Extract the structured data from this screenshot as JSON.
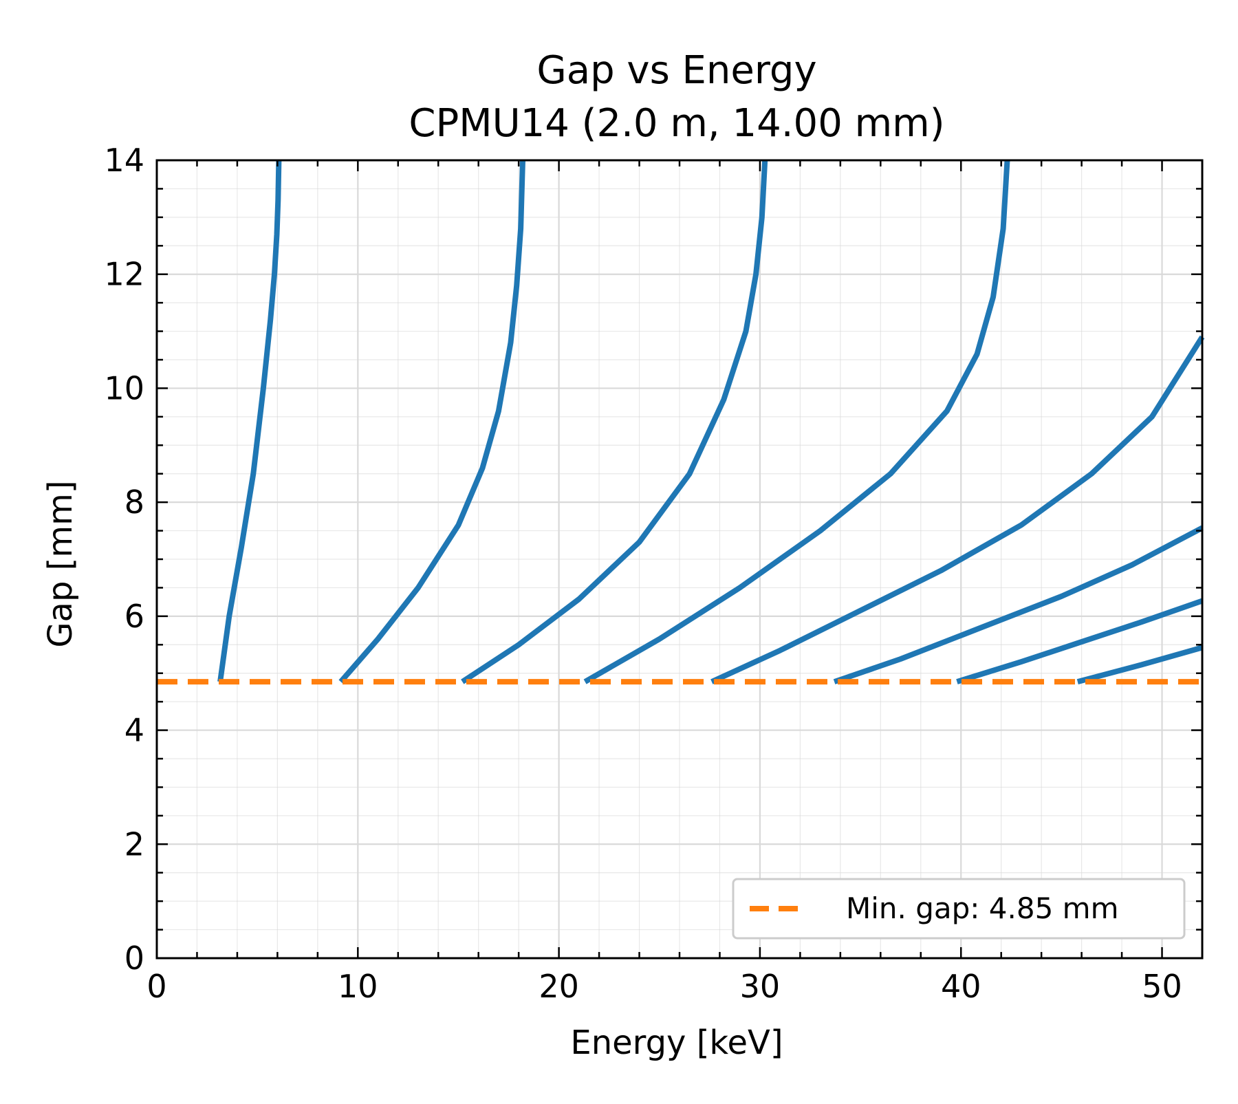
{
  "chart_data": {
    "type": "line",
    "title": [
      "Gap vs Energy",
      "CPMU14 (2.0 m, 14.00 mm)"
    ],
    "xlabel": "Energy [keV]",
    "ylabel": "Gap [mm]",
    "xlim": [
      0,
      52
    ],
    "ylim": [
      0,
      14
    ],
    "xticks": [
      0,
      10,
      20,
      30,
      40,
      50
    ],
    "yticks": [
      0,
      2,
      4,
      6,
      8,
      10,
      12,
      14
    ],
    "grid": true,
    "legend_position": "bottom-right",
    "colors": {
      "harmonic": "#1f77b4",
      "min_gap": "#ff7f0e",
      "grid": "#d9d9d9"
    },
    "series": [
      {
        "x": [
          3.15,
          3.6,
          4.2,
          4.8,
          5.3,
          5.65,
          5.85,
          5.97,
          6.03,
          6.07
        ],
        "y": [
          4.85,
          6.0,
          7.2,
          8.5,
          10.0,
          11.2,
          12.0,
          12.7,
          13.3,
          14.0
        ]
      },
      {
        "x": [
          9.15,
          11.0,
          13.0,
          15.0,
          16.2,
          17.0,
          17.6,
          17.9,
          18.1,
          18.2
        ],
        "y": [
          4.85,
          5.6,
          6.5,
          7.6,
          8.6,
          9.6,
          10.8,
          11.8,
          12.8,
          14.0
        ]
      },
      {
        "x": [
          15.2,
          18.0,
          21.0,
          24.0,
          26.5,
          28.2,
          29.3,
          29.8,
          30.1,
          30.25
        ],
        "y": [
          4.85,
          5.5,
          6.3,
          7.3,
          8.5,
          9.8,
          11.0,
          12.0,
          13.0,
          14.0
        ]
      },
      {
        "x": [
          21.3,
          25.0,
          29.0,
          33.0,
          36.5,
          39.3,
          40.8,
          41.6,
          42.1,
          42.3
        ],
        "y": [
          4.85,
          5.6,
          6.5,
          7.5,
          8.5,
          9.6,
          10.6,
          11.6,
          12.8,
          14.0
        ]
      },
      {
        "x": [
          27.6,
          31.0,
          35.0,
          39.0,
          43.0,
          46.5,
          49.5,
          52.0
        ],
        "y": [
          4.85,
          5.4,
          6.1,
          6.8,
          7.6,
          8.5,
          9.5,
          10.9
        ]
      },
      {
        "x": [
          33.7,
          37.0,
          41.0,
          45.0,
          48.5,
          52.0
        ],
        "y": [
          4.85,
          5.25,
          5.8,
          6.35,
          6.9,
          7.55
        ]
      },
      {
        "x": [
          39.8,
          43.0,
          46.0,
          49.0,
          52.0
        ],
        "y": [
          4.85,
          5.2,
          5.55,
          5.9,
          6.27
        ]
      },
      {
        "x": [
          45.8,
          49.0,
          52.0
        ],
        "y": [
          4.85,
          5.15,
          5.45
        ]
      }
    ],
    "min_gap": {
      "value": 4.85,
      "label": "Min. gap: 4.85 mm"
    }
  }
}
